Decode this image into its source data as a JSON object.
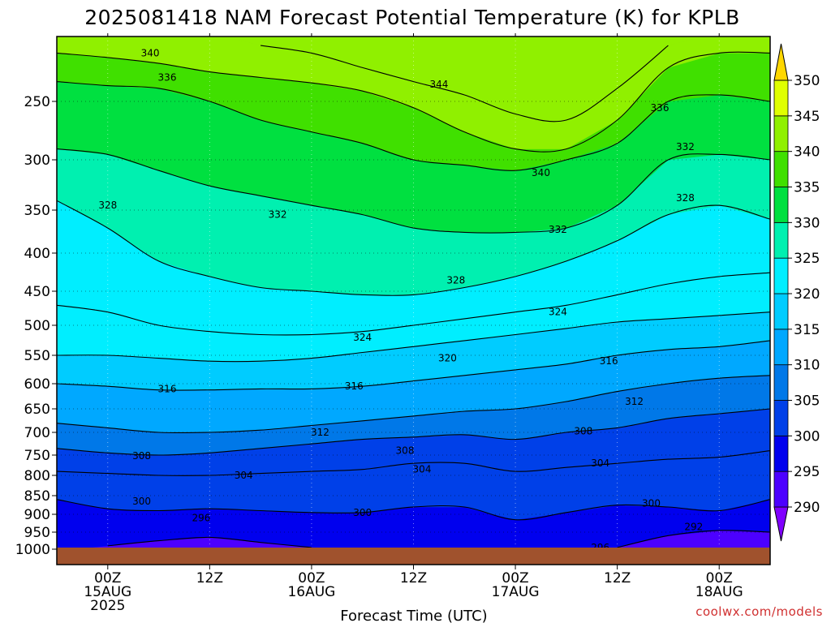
{
  "title": "2025081418 NAM Forecast Potential Temperature (K) for KPLB",
  "credit": "coolwx.com/models",
  "colors": {
    "ground": "#a0522d",
    "levels": [
      {
        "lo": 285,
        "hi": 290,
        "color": "#8000ff"
      },
      {
        "lo": 290,
        "hi": 295,
        "color": "#4c00ff"
      },
      {
        "lo": 295,
        "hi": 300,
        "color": "#0000ee"
      },
      {
        "lo": 300,
        "hi": 305,
        "color": "#0040e8"
      },
      {
        "lo": 305,
        "hi": 310,
        "color": "#0078e8"
      },
      {
        "lo": 310,
        "hi": 315,
        "color": "#00a8ff"
      },
      {
        "lo": 315,
        "hi": 320,
        "color": "#00ccff"
      },
      {
        "lo": 320,
        "hi": 325,
        "color": "#00eeff"
      },
      {
        "lo": 325,
        "hi": 330,
        "color": "#00f0b0"
      },
      {
        "lo": 330,
        "hi": 335,
        "color": "#00e040"
      },
      {
        "lo": 335,
        "hi": 340,
        "color": "#40e000"
      },
      {
        "lo": 340,
        "hi": 345,
        "color": "#90f000"
      },
      {
        "lo": 345,
        "hi": 350,
        "color": "#e0ff00"
      },
      {
        "lo": 350,
        "hi": 355,
        "color": "#ffd700"
      }
    ]
  },
  "chart_data": {
    "type": "heatmap",
    "title": "2025081418 NAM Forecast Potential Temperature (K) for KPLB",
    "xlabel": "Forecast Time (UTC)",
    "ylabel": "",
    "x_unit": "hours after 2025-08-14 18Z",
    "xlim": [
      0,
      84
    ],
    "y_pressure_hPa": [
      200,
      1000
    ],
    "y_scale": "log-pressure",
    "yticks": [
      250,
      300,
      350,
      400,
      450,
      500,
      550,
      600,
      650,
      700,
      750,
      800,
      850,
      900,
      950,
      1000
    ],
    "xticks": [
      {
        "hour": 6,
        "lines": [
          "00Z",
          "15AUG",
          "2025"
        ]
      },
      {
        "hour": 18,
        "lines": [
          "12Z"
        ]
      },
      {
        "hour": 30,
        "lines": [
          "00Z",
          "16AUG"
        ]
      },
      {
        "hour": 42,
        "lines": [
          "12Z"
        ]
      },
      {
        "hour": 54,
        "lines": [
          "00Z",
          "17AUG"
        ]
      },
      {
        "hour": 66,
        "lines": [
          "12Z"
        ]
      },
      {
        "hour": 78,
        "lines": [
          "00Z",
          "18AUG"
        ]
      }
    ],
    "colorbar": {
      "ticks": [
        290,
        295,
        300,
        305,
        310,
        315,
        320,
        325,
        330,
        335,
        340,
        345,
        350
      ],
      "min": 285,
      "max": 355
    },
    "hours": [
      0,
      6,
      12,
      18,
      24,
      30,
      36,
      42,
      48,
      54,
      60,
      66,
      72,
      78,
      84
    ],
    "isentropes_hPa": [
      {
        "theta": 296,
        "p": [
          null,
          990,
          975,
          965,
          980,
          995,
          null,
          null,
          null,
          null,
          null,
          995,
          960,
          945,
          950
        ]
      },
      {
        "theta": 300,
        "p": [
          860,
          885,
          890,
          885,
          890,
          895,
          895,
          880,
          880,
          915,
          895,
          875,
          880,
          890,
          860
        ]
      },
      {
        "theta": 304,
        "p": [
          790,
          795,
          800,
          800,
          795,
          790,
          785,
          770,
          770,
          790,
          780,
          770,
          760,
          755,
          740
        ]
      },
      {
        "theta": 308,
        "p": [
          735,
          745,
          750,
          745,
          735,
          725,
          715,
          710,
          705,
          715,
          700,
          690,
          670,
          660,
          650
        ]
      },
      {
        "theta": 312,
        "p": [
          680,
          690,
          700,
          700,
          695,
          685,
          675,
          665,
          655,
          650,
          635,
          615,
          600,
          590,
          585
        ]
      },
      {
        "theta": 316,
        "p": [
          600,
          605,
          612,
          612,
          610,
          610,
          605,
          595,
          585,
          575,
          565,
          550,
          540,
          535,
          525
        ]
      },
      {
        "theta": 320,
        "p": [
          550,
          550,
          555,
          560,
          560,
          555,
          545,
          535,
          525,
          515,
          505,
          495,
          490,
          485,
          480
        ]
      },
      {
        "theta": 324,
        "p": [
          470,
          480,
          500,
          510,
          515,
          515,
          510,
          500,
          490,
          480,
          470,
          455,
          440,
          430,
          425
        ]
      },
      {
        "theta": 328,
        "p": [
          340,
          370,
          410,
          430,
          445,
          450,
          455,
          455,
          445,
          430,
          410,
          385,
          355,
          345,
          360
        ]
      },
      {
        "theta": 332,
        "p": [
          290,
          295,
          310,
          325,
          335,
          345,
          355,
          370,
          375,
          375,
          370,
          345,
          300,
          295,
          300
        ]
      },
      {
        "theta": 336,
        "p": [
          235,
          238,
          240,
          250,
          265,
          275,
          285,
          300,
          305,
          310,
          300,
          285,
          250,
          245,
          250
        ]
      },
      {
        "theta": 340,
        "p": [
          215,
          218,
          222,
          228,
          232,
          236,
          242,
          255,
          275,
          290,
          290,
          265,
          225,
          215,
          215
        ]
      },
      {
        "theta": 344,
        "p": [
          null,
          null,
          null,
          null,
          210,
          215,
          225,
          235,
          245,
          260,
          265,
          240,
          210,
          null,
          null
        ]
      }
    ],
    "contour_labels": [
      {
        "text": "340",
        "hour": 11,
        "p": 215
      },
      {
        "text": "336",
        "hour": 13,
        "p": 232
      },
      {
        "text": "344",
        "hour": 45,
        "p": 237
      },
      {
        "text": "336",
        "hour": 71,
        "p": 255
      },
      {
        "text": "332",
        "hour": 74,
        "p": 288
      },
      {
        "text": "340",
        "hour": 57,
        "p": 312
      },
      {
        "text": "328",
        "hour": 6,
        "p": 345
      },
      {
        "text": "332",
        "hour": 26,
        "p": 355
      },
      {
        "text": "328",
        "hour": 74,
        "p": 337
      },
      {
        "text": "332",
        "hour": 59,
        "p": 372
      },
      {
        "text": "328",
        "hour": 47,
        "p": 435
      },
      {
        "text": "324",
        "hour": 59,
        "p": 480
      },
      {
        "text": "324",
        "hour": 36,
        "p": 520
      },
      {
        "text": "320",
        "hour": 46,
        "p": 555
      },
      {
        "text": "316",
        "hour": 65,
        "p": 560
      },
      {
        "text": "316",
        "hour": 13,
        "p": 610
      },
      {
        "text": "316",
        "hour": 35,
        "p": 605
      },
      {
        "text": "312",
        "hour": 68,
        "p": 635
      },
      {
        "text": "312",
        "hour": 31,
        "p": 700
      },
      {
        "text": "308",
        "hour": 62,
        "p": 697
      },
      {
        "text": "308",
        "hour": 10,
        "p": 752
      },
      {
        "text": "308",
        "hour": 41,
        "p": 740
      },
      {
        "text": "304",
        "hour": 64,
        "p": 770
      },
      {
        "text": "304",
        "hour": 43,
        "p": 785
      },
      {
        "text": "304",
        "hour": 22,
        "p": 800
      },
      {
        "text": "300",
        "hour": 10,
        "p": 865
      },
      {
        "text": "300",
        "hour": 36,
        "p": 895
      },
      {
        "text": "300",
        "hour": 70,
        "p": 870
      },
      {
        "text": "296",
        "hour": 17,
        "p": 910
      },
      {
        "text": "292",
        "hour": 75,
        "p": 935
      },
      {
        "text": "296",
        "hour": 64,
        "p": 995
      }
    ]
  }
}
